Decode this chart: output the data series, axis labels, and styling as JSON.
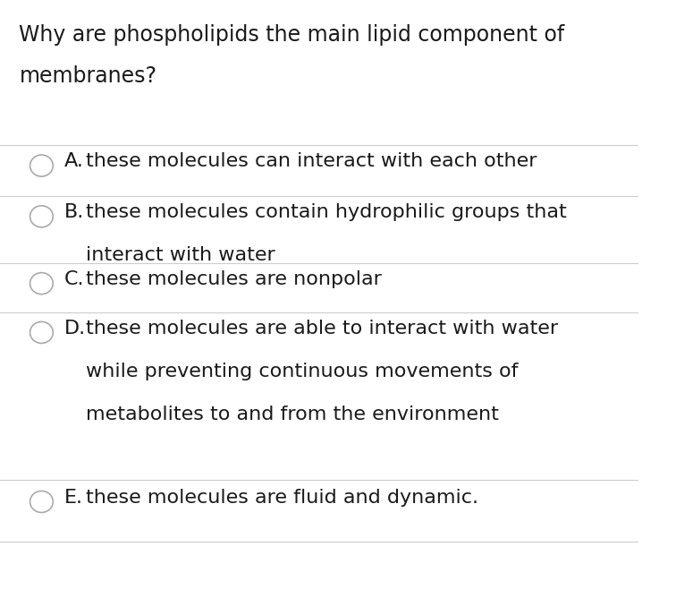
{
  "title_line1": "Why are phospholipids the main lipid component of",
  "title_line2": "membranes?",
  "background_color": "#ffffff",
  "text_color": "#1a1a1a",
  "divider_color": "#cccccc",
  "circle_edge_color": "#aaaaaa",
  "circle_fill_color": "#ffffff",
  "options": [
    {
      "label": "A.",
      "lines": [
        "these molecules can interact with each other"
      ]
    },
    {
      "label": "B.",
      "lines": [
        "these molecules contain hydrophilic groups that",
        "interact with water"
      ]
    },
    {
      "label": "C.",
      "lines": [
        "these molecules are nonpolar"
      ]
    },
    {
      "label": "D.",
      "lines": [
        "these molecules are able to interact with water",
        "while preventing continuous movements of",
        "metabolites to and from the environment"
      ]
    },
    {
      "label": "E.",
      "lines": [
        "these molecules are fluid and dynamic."
      ]
    }
  ],
  "title_fontsize": 17,
  "option_fontsize": 16,
  "fig_width": 7.56,
  "fig_height": 6.68
}
